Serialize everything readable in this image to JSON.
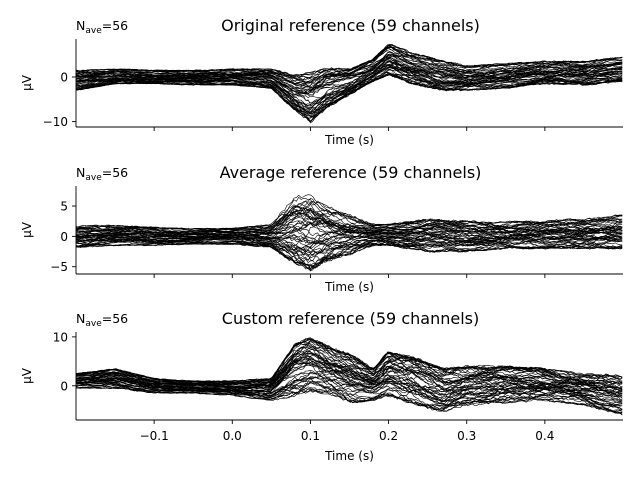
{
  "chart_data": [
    {
      "type": "line",
      "title": "Original reference (59 channels)",
      "nave_label": "N",
      "nave_sub": "ave",
      "nave_value": "=56",
      "xlabel": "Time (s)",
      "ylabel": "µV",
      "xlim": [
        -0.2,
        0.5
      ],
      "ylim": [
        -11.2,
        8.5
      ],
      "yticks": [
        {
          "v": 0,
          "label": "0"
        },
        {
          "v": -10,
          "label": "−10"
        }
      ],
      "xticks": [
        -0.1,
        0.0,
        0.1,
        0.2,
        0.3,
        0.4
      ],
      "show_xtick_labels": false,
      "n_series": 59,
      "line_color": "#000000",
      "envelope": [
        [
          -0.2,
          -3.0,
          1.5
        ],
        [
          -0.15,
          -1.5,
          1.8
        ],
        [
          -0.1,
          -1.5,
          1.5
        ],
        [
          -0.05,
          -1.8,
          1.5
        ],
        [
          0.0,
          -1.8,
          1.8
        ],
        [
          0.05,
          -2.5,
          1.8
        ],
        [
          0.08,
          -7.5,
          0.5
        ],
        [
          0.1,
          -10.2,
          1.0
        ],
        [
          0.12,
          -7.0,
          2.0
        ],
        [
          0.15,
          -4.0,
          1.8
        ],
        [
          0.18,
          -1.0,
          4.0
        ],
        [
          0.2,
          0.5,
          7.5
        ],
        [
          0.23,
          -1.5,
          5.5
        ],
        [
          0.27,
          -3.0,
          3.5
        ],
        [
          0.3,
          -3.0,
          2.5
        ],
        [
          0.35,
          -2.5,
          3.0
        ],
        [
          0.4,
          -1.5,
          3.5
        ],
        [
          0.45,
          -1.8,
          3.5
        ],
        [
          0.5,
          -1.0,
          4.5
        ]
      ]
    },
    {
      "type": "line",
      "title": "Average reference (59 channels)",
      "nave_label": "N",
      "nave_sub": "ave",
      "nave_value": "=56",
      "xlabel": "Time (s)",
      "ylabel": "µV",
      "xlim": [
        -0.2,
        0.5
      ],
      "ylim": [
        -6.2,
        8.3
      ],
      "yticks": [
        {
          "v": 5,
          "label": "5"
        },
        {
          "v": 0,
          "label": "0"
        },
        {
          "v": -5,
          "label": "−5"
        }
      ],
      "xticks": [
        -0.1,
        0.0,
        0.1,
        0.2,
        0.3,
        0.4
      ],
      "show_xtick_labels": false,
      "n_series": 59,
      "line_color": "#000000",
      "envelope": [
        [
          -0.2,
          -1.8,
          1.8
        ],
        [
          -0.15,
          -1.5,
          1.8
        ],
        [
          -0.1,
          -1.5,
          1.5
        ],
        [
          -0.05,
          -1.3,
          1.3
        ],
        [
          0.0,
          -1.3,
          1.3
        ],
        [
          0.05,
          -1.8,
          2.0
        ],
        [
          0.08,
          -4.5,
          6.5
        ],
        [
          0.1,
          -5.5,
          7.2
        ],
        [
          0.12,
          -4.0,
          5.5
        ],
        [
          0.15,
          -3.0,
          3.5
        ],
        [
          0.18,
          -1.5,
          2.0
        ],
        [
          0.2,
          -1.5,
          2.0
        ],
        [
          0.25,
          -2.5,
          2.8
        ],
        [
          0.3,
          -2.5,
          2.5
        ],
        [
          0.35,
          -2.0,
          2.5
        ],
        [
          0.4,
          -2.0,
          2.5
        ],
        [
          0.45,
          -2.0,
          3.0
        ],
        [
          0.5,
          -2.0,
          3.5
        ]
      ]
    },
    {
      "type": "line",
      "title": "Custom reference (59 channels)",
      "nave_label": "N",
      "nave_sub": "ave",
      "nave_value": "=56",
      "xlabel": "Time (s)",
      "ylabel": "µV",
      "xlim": [
        -0.2,
        0.5
      ],
      "ylim": [
        -7.0,
        11.0
      ],
      "yticks": [
        {
          "v": 10,
          "label": "10"
        },
        {
          "v": 0,
          "label": "0"
        }
      ],
      "xticks": [
        -0.1,
        0.0,
        0.1,
        0.2,
        0.3,
        0.4
      ],
      "xtick_labels": [
        "−0.1",
        "0.0",
        "0.1",
        "0.2",
        "0.3",
        "0.4"
      ],
      "show_xtick_labels": true,
      "n_series": 59,
      "line_color": "#000000",
      "envelope": [
        [
          -0.2,
          -0.5,
          2.5
        ],
        [
          -0.15,
          -0.5,
          3.5
        ],
        [
          -0.1,
          -1.5,
          1.5
        ],
        [
          -0.05,
          -1.5,
          1.0
        ],
        [
          0.0,
          -2.0,
          1.0
        ],
        [
          0.05,
          -3.0,
          1.5
        ],
        [
          0.08,
          -2.0,
          8.5
        ],
        [
          0.1,
          -1.0,
          9.8
        ],
        [
          0.13,
          -2.0,
          7.5
        ],
        [
          0.15,
          -3.5,
          6.5
        ],
        [
          0.18,
          -3.0,
          3.5
        ],
        [
          0.2,
          -2.0,
          7.0
        ],
        [
          0.23,
          -3.5,
          6.0
        ],
        [
          0.27,
          -5.5,
          3.5
        ],
        [
          0.3,
          -4.0,
          4.0
        ],
        [
          0.35,
          -3.5,
          4.0
        ],
        [
          0.4,
          -3.0,
          3.5
        ],
        [
          0.45,
          -4.0,
          2.5
        ],
        [
          0.5,
          -6.0,
          2.0
        ]
      ]
    }
  ]
}
